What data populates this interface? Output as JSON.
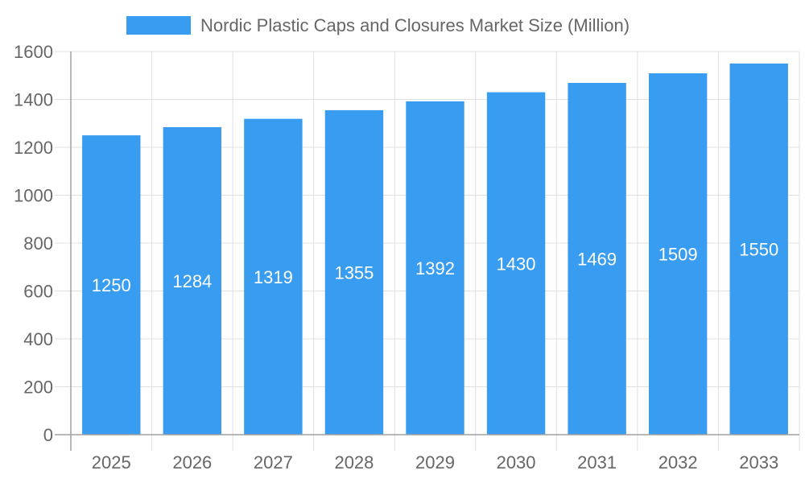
{
  "legend": {
    "label": "Nordic Plastic Caps and Closures Market Size (Million)",
    "swatch_color": "#389cf0"
  },
  "colors": {
    "bar": "#389cf0",
    "grid": "#e0e0e0",
    "axis": "#a0a0a0",
    "tick_text": "#666666",
    "bar_label": "#ffffff"
  },
  "chart_data": {
    "type": "bar",
    "title": "",
    "xlabel": "",
    "ylabel": "",
    "categories": [
      "2025",
      "2026",
      "2027",
      "2028",
      "2029",
      "2030",
      "2031",
      "2032",
      "2033"
    ],
    "series": [
      {
        "name": "Nordic Plastic Caps and Closures Market Size (Million)",
        "values": [
          1250,
          1284,
          1319,
          1355,
          1392,
          1430,
          1469,
          1509,
          1550
        ]
      }
    ],
    "ylim": [
      0,
      1600
    ],
    "yticks": [
      0,
      200,
      400,
      600,
      800,
      1000,
      1200,
      1400,
      1600
    ],
    "grid": true,
    "legend_position": "top",
    "data_labels": true
  }
}
